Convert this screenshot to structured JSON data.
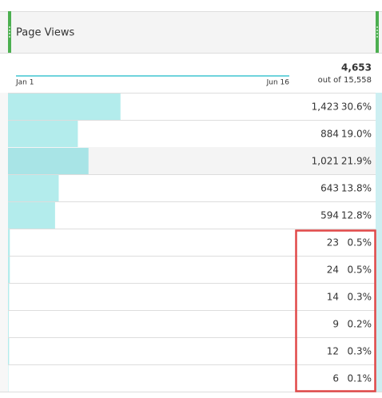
{
  "header": {
    "title": "Page Views"
  },
  "sparkline": {
    "start_label": "Jan 1",
    "end_label": "Jun 16"
  },
  "summary": {
    "total": "4,653",
    "out_of": "out of 15,558"
  },
  "rows": [
    {
      "value": "1,423",
      "percent": 30.6,
      "percent_label": "30.6%"
    },
    {
      "value": "884",
      "percent": 19.0,
      "percent_label": "19.0%"
    },
    {
      "value": "1,021",
      "percent": 21.9,
      "percent_label": "21.9%"
    },
    {
      "value": "643",
      "percent": 13.8,
      "percent_label": "13.8%"
    },
    {
      "value": "594",
      "percent": 12.8,
      "percent_label": "12.8%"
    },
    {
      "value": "23",
      "percent": 0.5,
      "percent_label": "0.5%"
    },
    {
      "value": "24",
      "percent": 0.5,
      "percent_label": "0.5%"
    },
    {
      "value": "14",
      "percent": 0.3,
      "percent_label": "0.3%"
    },
    {
      "value": "9",
      "percent": 0.2,
      "percent_label": "0.2%"
    },
    {
      "value": "12",
      "percent": 0.3,
      "percent_label": "0.3%"
    },
    {
      "value": "6",
      "percent": 0.1,
      "percent_label": "0.1%"
    }
  ]
}
